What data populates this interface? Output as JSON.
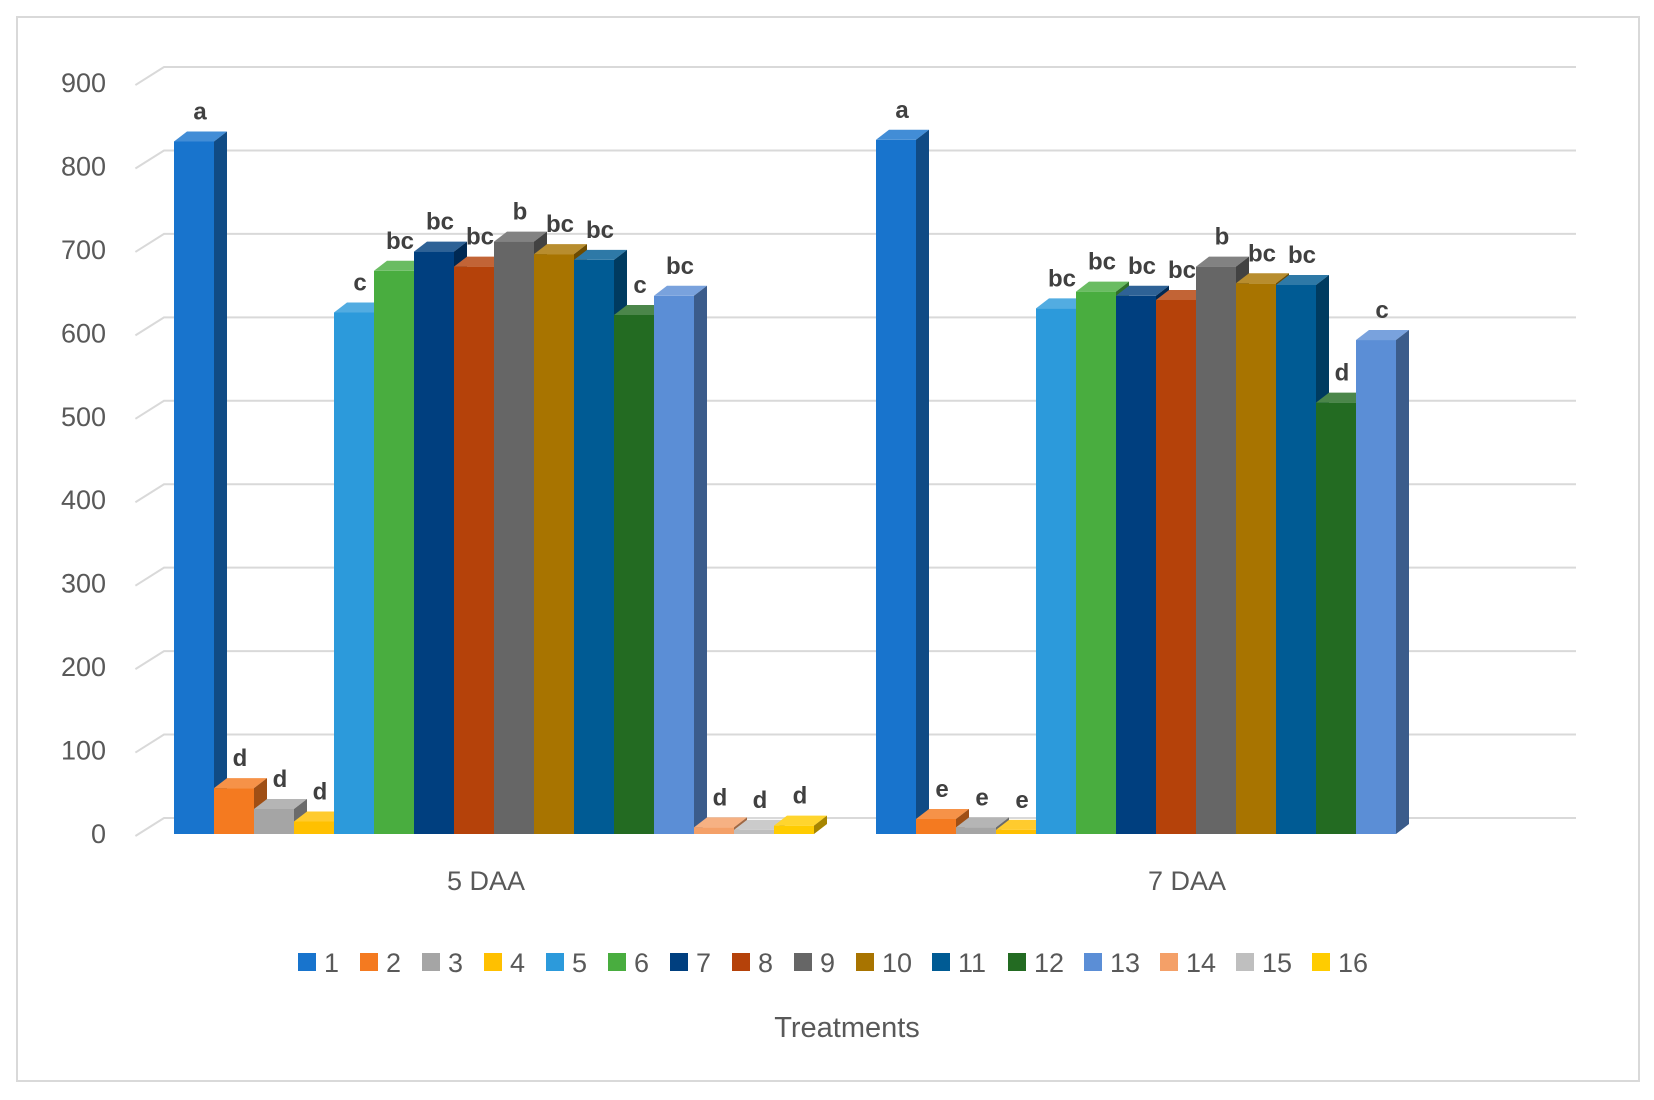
{
  "chart_data": {
    "type": "bar",
    "title": "",
    "xlabel": "Treatments",
    "ylabel": "",
    "ylim": [
      0,
      900
    ],
    "yticks": [
      0,
      100,
      200,
      300,
      400,
      500,
      600,
      700,
      800,
      900
    ],
    "grid": true,
    "style": "3d-clustered-column",
    "legend_position": "bottom",
    "categories": [
      "5 DAA",
      "7 DAA"
    ],
    "series": [
      {
        "name": "1",
        "color": "#1874CD",
        "values": [
          830,
          832
        ],
        "labels": [
          "a",
          "a"
        ]
      },
      {
        "name": "2",
        "color": "#F47A20",
        "values": [
          55,
          18
        ],
        "labels": [
          "d",
          "e"
        ]
      },
      {
        "name": "3",
        "color": "#A5A5A5",
        "values": [
          30,
          8
        ],
        "labels": [
          "d",
          "e"
        ]
      },
      {
        "name": "4",
        "color": "#FFC000",
        "values": [
          15,
          5
        ],
        "labels": [
          "d",
          "e"
        ]
      },
      {
        "name": "5",
        "color": "#2C9ADB",
        "values": [
          625,
          630
        ],
        "labels": [
          "c",
          "bc"
        ]
      },
      {
        "name": "6",
        "color": "#49AD3F",
        "values": [
          675,
          650
        ],
        "labels": [
          "bc",
          "bc"
        ]
      },
      {
        "name": "7",
        "color": "#003F7F",
        "values": [
          698,
          645
        ],
        "labels": [
          "bc",
          "bc"
        ]
      },
      {
        "name": "8",
        "color": "#B5420A",
        "values": [
          680,
          640
        ],
        "labels": [
          "bc",
          "bc"
        ]
      },
      {
        "name": "9",
        "color": "#666666",
        "values": [
          710,
          680
        ],
        "labels": [
          "b",
          "b"
        ]
      },
      {
        "name": "10",
        "color": "#A87400",
        "values": [
          695,
          660
        ],
        "labels": [
          "bc",
          "bc"
        ]
      },
      {
        "name": "11",
        "color": "#005B94",
        "values": [
          688,
          658
        ],
        "labels": [
          "bc",
          "bc"
        ]
      },
      {
        "name": "12",
        "color": "#236B22",
        "values": [
          622,
          517
        ],
        "labels": [
          "c",
          "d"
        ]
      },
      {
        "name": "13",
        "color": "#5B8ED6",
        "values": [
          645,
          592
        ],
        "labels": [
          "bc",
          "c"
        ]
      },
      {
        "name": "14",
        "color": "#F4A068",
        "values": [
          8,
          null
        ],
        "labels": [
          "d",
          ""
        ]
      },
      {
        "name": "15",
        "color": "#BFBFBF",
        "values": [
          5,
          null
        ],
        "labels": [
          "d",
          ""
        ]
      },
      {
        "name": "16",
        "color": "#FFCC00",
        "values": [
          10,
          null
        ],
        "labels": [
          "d",
          ""
        ]
      }
    ]
  }
}
